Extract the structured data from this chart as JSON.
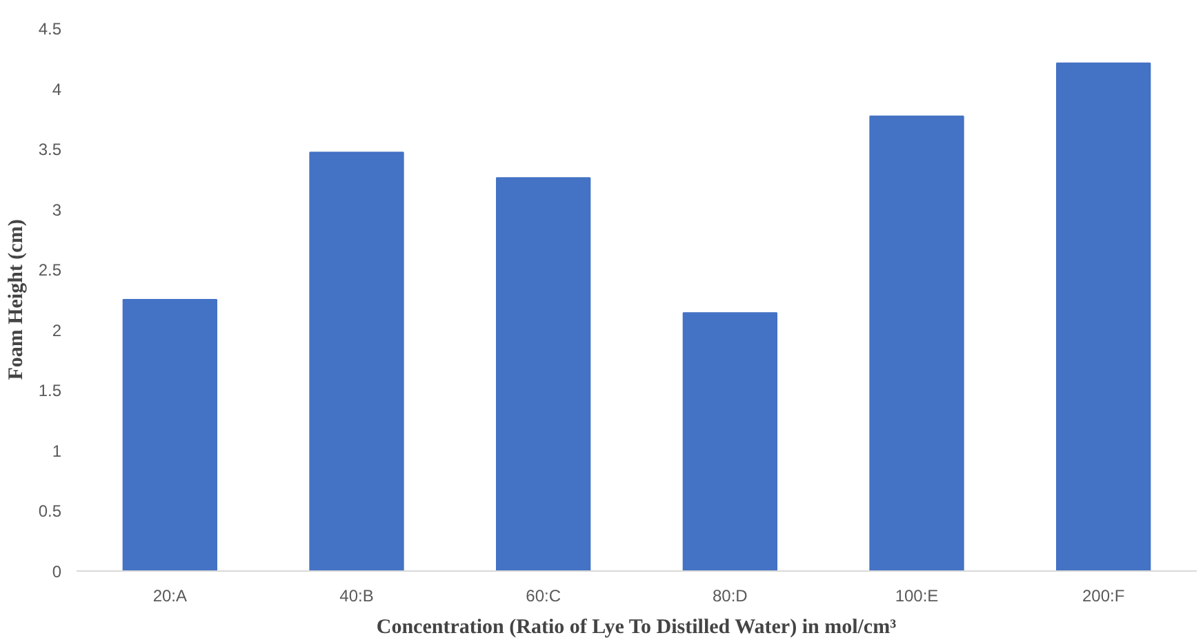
{
  "chart_data": {
    "type": "bar",
    "xlabel": "Concentration (Ratio of Lye To Distilled Water) in mol/cm³",
    "ylabel": "Foam Height (cm)",
    "categories": [
      "20:A",
      "40:B",
      "60:C",
      "80:D",
      "100:E",
      "200:F"
    ],
    "values": [
      2.25,
      3.47,
      3.26,
      2.14,
      3.77,
      4.21
    ],
    "color": "#4472c4",
    "ylim": [
      0,
      4.5
    ],
    "yticks": [
      0,
      0.5,
      1,
      1.5,
      2,
      2.5,
      3,
      3.5,
      4,
      4.5
    ],
    "grid": false
  }
}
